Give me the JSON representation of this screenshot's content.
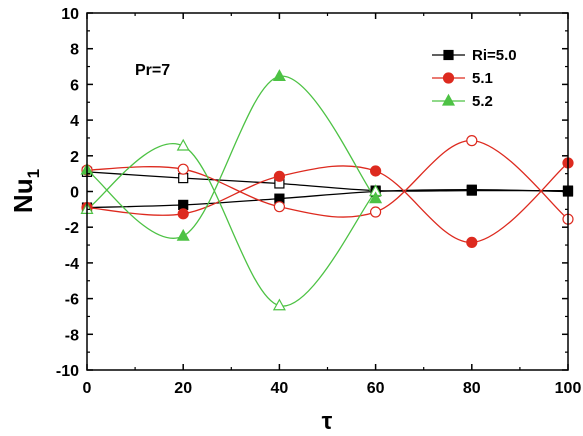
{
  "chart_data": {
    "type": "line",
    "title": "",
    "xlabel": "τ",
    "ylabel": "Nu",
    "ylabel_sub": "1",
    "xlim": [
      0,
      100
    ],
    "ylim": [
      -10,
      10
    ],
    "xticks": [
      "0",
      "20",
      "40",
      "60",
      "80",
      "100"
    ],
    "yticks": [
      "-10",
      "-8",
      "-6",
      "-4",
      "-2",
      "0",
      "2",
      "4",
      "6",
      "8",
      "10"
    ],
    "annotation": "Pr=7",
    "legend_position": "top-right",
    "grid": false,
    "series": [
      {
        "name": "Ri=5.0",
        "color": "#000000",
        "marker": "square",
        "upper": [
          [
            0,
            1.1
          ],
          [
            20,
            0.75
          ],
          [
            40,
            0.45
          ],
          [
            60,
            0.05
          ],
          [
            80,
            0.05
          ],
          [
            100,
            0.05
          ]
        ],
        "lower": [
          [
            0,
            -0.9
          ],
          [
            20,
            -0.75
          ],
          [
            40,
            -0.4
          ],
          [
            60,
            0.0
          ],
          [
            80,
            0.1
          ],
          [
            100,
            0.0
          ]
        ]
      },
      {
        "name": "5.1",
        "color": "#dd2a1f",
        "marker": "circle",
        "upper": [
          [
            0,
            1.2
          ],
          [
            20,
            1.25
          ],
          [
            40,
            -0.85
          ],
          [
            60,
            -1.15
          ],
          [
            80,
            2.85
          ],
          [
            100,
            -1.55
          ]
        ],
        "lower": [
          [
            0,
            -0.9
          ],
          [
            20,
            -1.25
          ],
          [
            40,
            0.85
          ],
          [
            60,
            1.15
          ],
          [
            80,
            -2.85
          ],
          [
            100,
            1.6
          ]
        ]
      },
      {
        "name": "5.2",
        "color": "#4dc244",
        "marker": "triangle",
        "upper": [
          [
            0,
            -1.0
          ],
          [
            20,
            2.55
          ],
          [
            40,
            -6.4
          ],
          [
            60,
            0.0
          ]
        ],
        "lower": [
          [
            0,
            1.2
          ],
          [
            20,
            -2.5
          ],
          [
            40,
            6.45
          ],
          [
            60,
            -0.4
          ]
        ]
      }
    ]
  }
}
